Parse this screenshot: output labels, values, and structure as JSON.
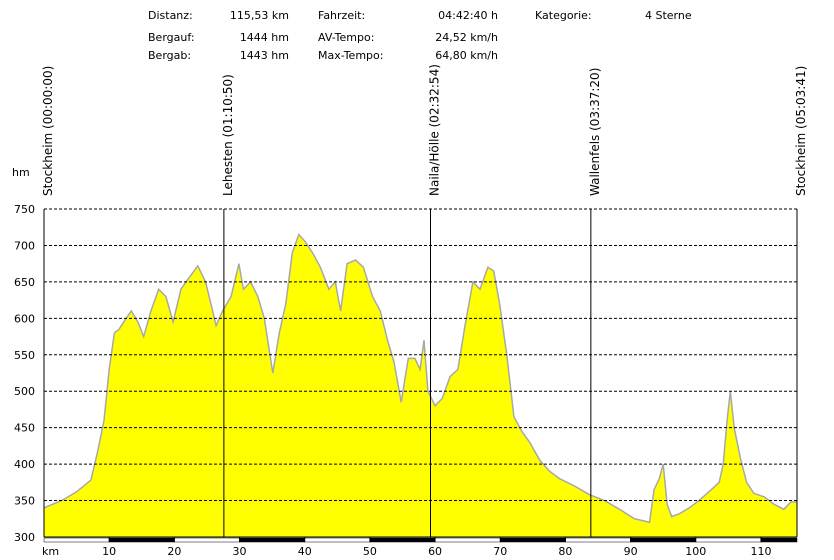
{
  "stats": [
    [
      {
        "label": "Distanz:",
        "value": "115,53 km"
      },
      {
        "label": "Bergauf:",
        "value": "1444 hm"
      },
      {
        "label": "Bergab:",
        "value": "1443 hm"
      }
    ],
    [
      {
        "label": "Fahrzeit:",
        "value": "04:42:40 h"
      },
      {
        "label": "AV-Tempo:",
        "value": "24,52 km/h"
      },
      {
        "label": "Max-Tempo:",
        "value": "64,80 km/h"
      }
    ],
    [
      {
        "label": "Kategorie:",
        "value": "4 Sterne"
      }
    ]
  ],
  "chart_data": {
    "type": "area",
    "x_label": "km",
    "y_label": "hm",
    "color": "#ffff00",
    "line_color": "#a8a8a8",
    "xlim": [
      0,
      115.53
    ],
    "ylim": [
      300,
      750
    ],
    "xticks": [
      10,
      20,
      30,
      40,
      50,
      60,
      70,
      80,
      90,
      100,
      110
    ],
    "yticks": [
      300,
      350,
      400,
      450,
      500,
      550,
      600,
      650,
      700,
      750
    ],
    "grid": true,
    "markers": [
      {
        "label": "Stockheim (00:00:00)",
        "x": 0
      },
      {
        "label": "Lehesten (01:10:50)",
        "x": 27.6
      },
      {
        "label": "Naila/Hölle (02:32:54)",
        "x": 59.3
      },
      {
        "label": "Wallenfels (03:37:20)",
        "x": 83.9
      },
      {
        "label": "Stockheim (05:03:41)",
        "x": 115.53
      }
    ],
    "x": [
      0,
      2.7,
      5.0,
      7.2,
      8.3,
      9.2,
      10.0,
      10.8,
      11.5,
      12.6,
      13.4,
      14.4,
      15.3,
      16.4,
      17.6,
      18.7,
      19.8,
      21.0,
      22.2,
      23.6,
      24.8,
      26.4,
      27.4,
      28.7,
      29.9,
      30.6,
      31.7,
      32.8,
      33.8,
      35.1,
      36.1,
      37.1,
      38.1,
      39.1,
      40.1,
      41.2,
      42.4,
      43.7,
      44.7,
      45.5,
      46.5,
      47.8,
      49.0,
      50.4,
      51.6,
      52.7,
      53.7,
      54.8,
      55.9,
      56.9,
      57.7,
      58.3,
      58.9,
      60.0,
      61.1,
      62.3,
      63.5,
      64.6,
      65.8,
      66.9,
      68.1,
      69.0,
      69.9,
      71.0,
      72.1,
      73.3,
      74.5,
      76.1,
      77.6,
      79.1,
      81.4,
      83.7,
      86.0,
      88.3,
      90.6,
      92.1,
      92.9,
      93.6,
      94.4,
      95.0,
      95.6,
      96.3,
      97.5,
      99.0,
      100.5,
      102.4,
      103.6,
      104.2,
      104.8,
      105.3,
      105.9,
      106.8,
      107.8,
      108.9,
      110.5,
      112.0,
      113.5,
      114.6,
      115.53
    ],
    "values": [
      340,
      350,
      362,
      378,
      420,
      460,
      530,
      580,
      585,
      600,
      610,
      595,
      575,
      610,
      640,
      630,
      595,
      640,
      655,
      672,
      650,
      590,
      610,
      630,
      675,
      640,
      650,
      630,
      600,
      525,
      580,
      620,
      690,
      715,
      705,
      690,
      670,
      640,
      650,
      610,
      675,
      680,
      670,
      630,
      610,
      570,
      540,
      485,
      545,
      545,
      530,
      570,
      500,
      480,
      490,
      520,
      530,
      590,
      650,
      640,
      670,
      665,
      620,
      550,
      465,
      445,
      430,
      405,
      390,
      380,
      370,
      358,
      350,
      338,
      325,
      322,
      320,
      365,
      380,
      400,
      345,
      328,
      332,
      340,
      350,
      365,
      375,
      400,
      460,
      500,
      450,
      410,
      375,
      360,
      355,
      345,
      338,
      348,
      348
    ]
  }
}
